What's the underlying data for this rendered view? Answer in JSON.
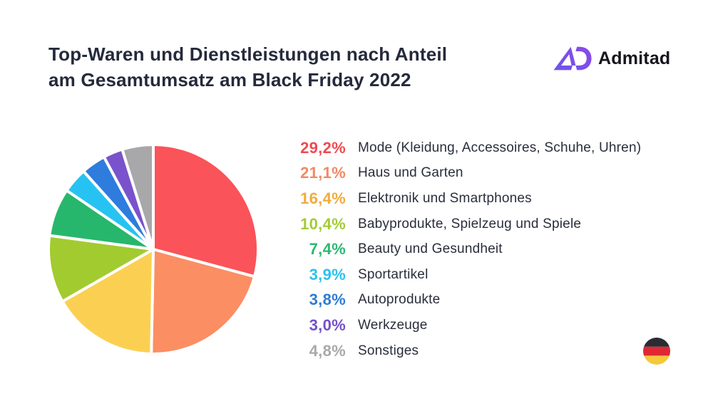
{
  "header": {
    "title_line1": "Top-Waren und Dienstleistungen nach Anteil",
    "title_line2": "am Gesamtumsatz am Black Friday 2022"
  },
  "logo": {
    "text": "Admitad",
    "mark_gradient_start": "#6d55ec",
    "mark_gradient_end": "#8a49e8"
  },
  "footer": {
    "flag": "germany-flag",
    "flag_colors": {
      "top": "#2b2b33",
      "middle": "#df2833",
      "bottom": "#f6c83c"
    }
  },
  "chart_data": {
    "type": "pie",
    "title": "Top-Waren und Dienstleistungen nach Anteil am Gesamtumsatz am Black Friday 2022",
    "start_angle_deg": 0,
    "direction": "clockwise",
    "legend_position": "right",
    "separator_color": "#ffffff",
    "slices": [
      {
        "label": "Mode (Kleidung, Accessoires, Schuhe, Uhren)",
        "value": 29.2,
        "value_label": "29,2%",
        "slice_color": "#fa5359",
        "percent_color": "#ef4a50"
      },
      {
        "label": "Haus und Garten",
        "value": 21.1,
        "value_label": "21,1%",
        "slice_color": "#fb8e63",
        "percent_color": "#f28963"
      },
      {
        "label": "Elektronik und Smartphones",
        "value": 16.4,
        "value_label": "16,4%",
        "slice_color": "#fbd052",
        "percent_color": "#f0ac3e"
      },
      {
        "label": "Babyprodukte, Spielzeug und Spiele",
        "value": 10.4,
        "value_label": "10,4%",
        "slice_color": "#a2cb30",
        "percent_color": "#a3cb36"
      },
      {
        "label": "Beauty und Gesundheit",
        "value": 7.4,
        "value_label": "7,4%",
        "slice_color": "#27b76c",
        "percent_color": "#2db873"
      },
      {
        "label": "Sportartikel",
        "value": 3.9,
        "value_label": "3,9%",
        "slice_color": "#26c3f2",
        "percent_color": "#2bc0ee"
      },
      {
        "label": "Autoprodukte",
        "value": 3.8,
        "value_label": "3,8%",
        "slice_color": "#2e7cde",
        "percent_color": "#2f7bd5"
      },
      {
        "label": "Werkzeuge",
        "value": 3.0,
        "value_label": "3,0%",
        "slice_color": "#7a52cc",
        "percent_color": "#7450c7"
      },
      {
        "label": "Sonstiges",
        "value": 4.8,
        "value_label": "4,8%",
        "slice_color": "#a8a8aa",
        "percent_color": "#a9a9ab"
      }
    ]
  }
}
